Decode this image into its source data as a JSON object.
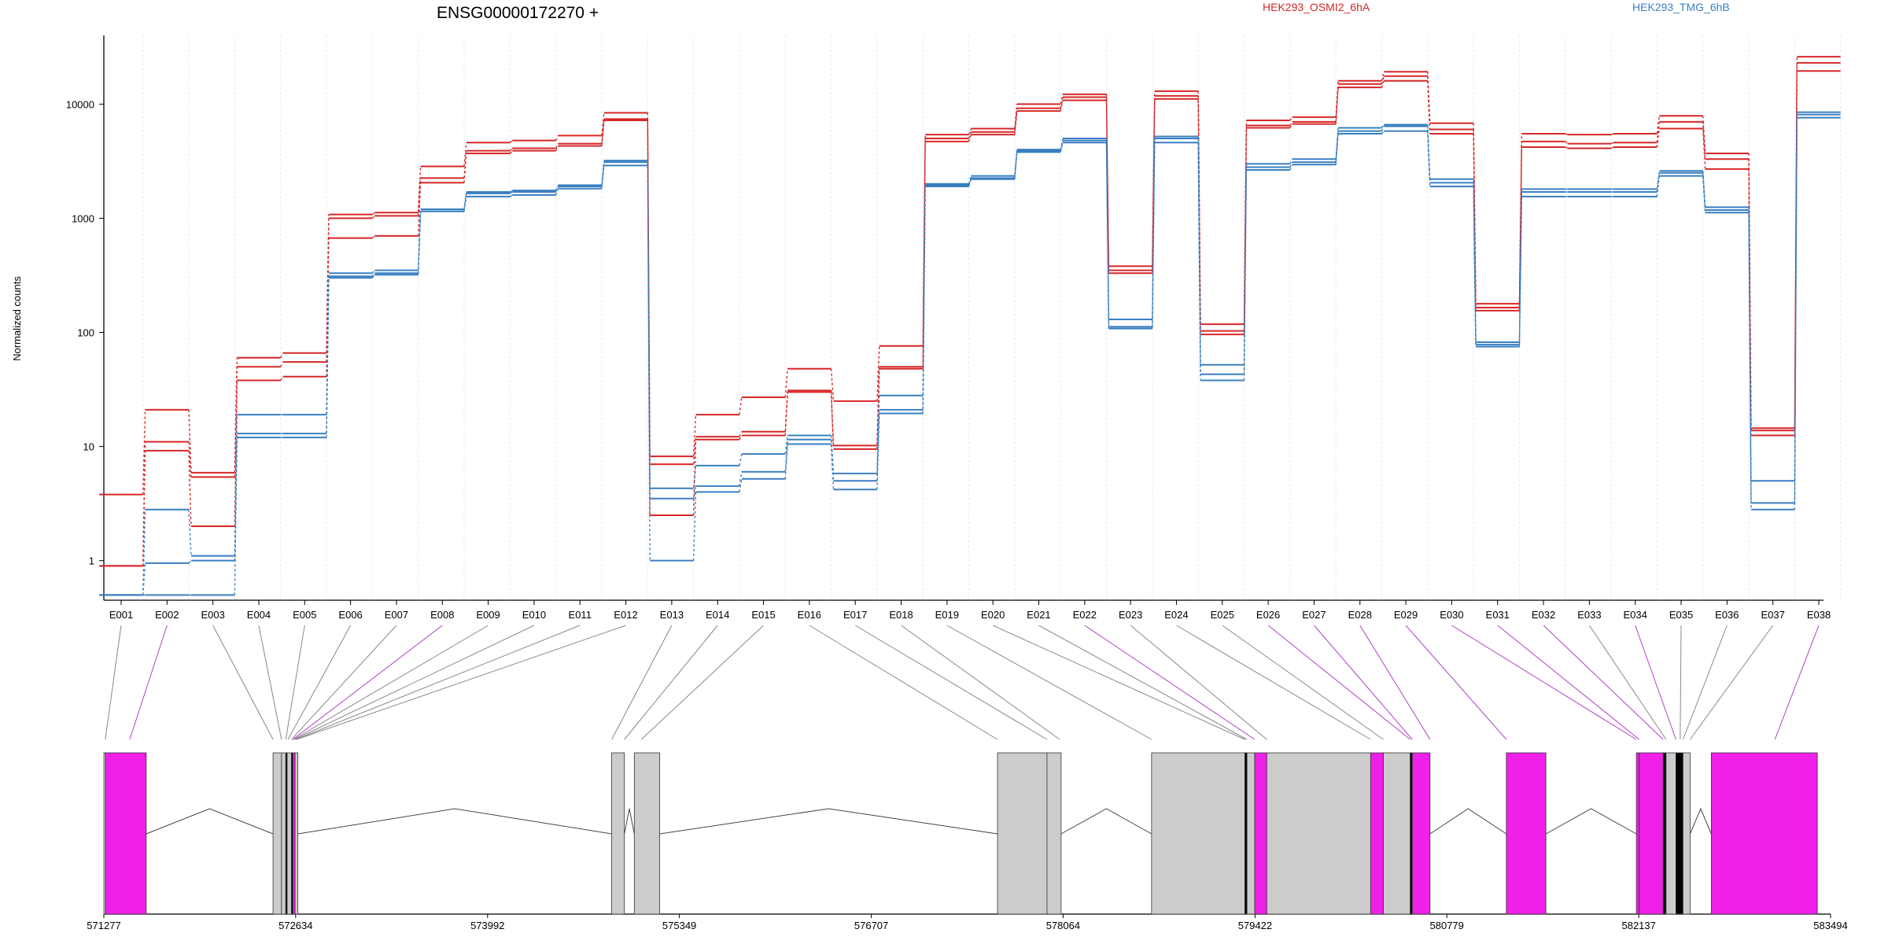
{
  "chart_data": {
    "type": "line",
    "title": "ENSG00000172270 +",
    "ylabel": "Normalized counts",
    "yscale": "log",
    "ylim": [
      0.45,
      40000
    ],
    "yticks": [
      "1",
      "10",
      "100",
      "1000",
      "10000"
    ],
    "grid": "vertical-light",
    "legend_position": "top",
    "categories": [
      "E001",
      "E002",
      "E003",
      "E004",
      "E005",
      "E006",
      "E007",
      "E008",
      "E009",
      "E010",
      "E011",
      "E012",
      "E013",
      "E014",
      "E015",
      "E016",
      "E017",
      "E018",
      "E019",
      "E020",
      "E021",
      "E022",
      "E023",
      "E024",
      "E025",
      "E026",
      "E027",
      "E028",
      "E029",
      "E030",
      "E031",
      "E032",
      "E033",
      "E034",
      "E035",
      "E036",
      "E037",
      "E038"
    ],
    "series": [
      {
        "name": "HEK293_OSMI2_6hA",
        "color": "#d62728",
        "replicates": [
          [
            3.8,
            21,
            5.9,
            60,
            66,
            1080,
            1120,
            2850,
            4600,
            4800,
            5300,
            8400,
            8.2,
            19,
            27,
            48,
            25,
            76,
            5400,
            6100,
            10000,
            12200,
            380,
            13000,
            118,
            7200,
            7700,
            16000,
            19200,
            6800,
            178,
            5500,
            5400,
            5500,
            7900,
            3700,
            14.5,
            26000
          ],
          [
            0.9,
            11,
            5.4,
            50,
            55,
            1000,
            1050,
            2250,
            3900,
            4100,
            4500,
            7400,
            7.0,
            12.2,
            13.5,
            31,
            10.2,
            50,
            5000,
            5700,
            9200,
            11500,
            350,
            11800,
            103,
            6500,
            7000,
            15000,
            17600,
            6000,
            165,
            4700,
            4500,
            4600,
            7000,
            3300,
            13.8,
            23000
          ],
          [
            0.9,
            9.2,
            2.0,
            38,
            41,
            670,
            700,
            2050,
            3700,
            3900,
            4300,
            7200,
            2.5,
            11.5,
            12.5,
            30,
            9.5,
            48,
            4700,
            5400,
            8700,
            10800,
            330,
            11100,
            96,
            6200,
            6700,
            14000,
            16000,
            5500,
            155,
            4200,
            4100,
            4200,
            6100,
            2700,
            12.5,
            19500
          ]
        ]
      },
      {
        "name": "HEK293_TMG_6hB",
        "color": "#3a7fc0",
        "replicates": [
          [
            0.5,
            2.8,
            1.1,
            19,
            19,
            330,
            350,
            1200,
            1700,
            1750,
            1950,
            3200,
            4.3,
            6.8,
            8.6,
            12.5,
            5.8,
            28,
            2000,
            2350,
            4000,
            5000,
            130,
            5200,
            52,
            3000,
            3300,
            6200,
            6600,
            2200,
            82,
            1800,
            1800,
            1800,
            2600,
            1250,
            5.0,
            8500
          ],
          [
            0.5,
            0.95,
            1.0,
            13,
            13,
            310,
            330,
            1150,
            1650,
            1700,
            1900,
            3100,
            3.5,
            4.5,
            6.0,
            11.5,
            5.0,
            21,
            1950,
            2250,
            3900,
            4800,
            112,
            5000,
            43,
            2800,
            3100,
            5800,
            6400,
            2050,
            78,
            1700,
            1700,
            1700,
            2500,
            1180,
            3.2,
            8100
          ],
          [
            0.5,
            0.5,
            0.5,
            12,
            12,
            300,
            320,
            1150,
            1550,
            1600,
            1820,
            2900,
            1.0,
            4.0,
            5.2,
            10.5,
            4.2,
            19.5,
            1900,
            2200,
            3800,
            4600,
            108,
            4600,
            38,
            2650,
            2950,
            5500,
            5800,
            1900,
            75,
            1550,
            1550,
            1550,
            2350,
            1120,
            2.8,
            7600
          ]
        ]
      }
    ]
  },
  "gene_model": {
    "coordinates": [
      "571277",
      "572634",
      "573992",
      "575349",
      "576707",
      "578064",
      "579422",
      "580779",
      "582137",
      "583494"
    ],
    "highlight_color": "#f020e8",
    "exon_color": "#cccccc",
    "highlighted_exons": [
      "E002",
      "E008",
      "E022",
      "E026",
      "E027",
      "E028",
      "E029",
      "E030",
      "E031",
      "E032",
      "E034",
      "E038"
    ]
  }
}
